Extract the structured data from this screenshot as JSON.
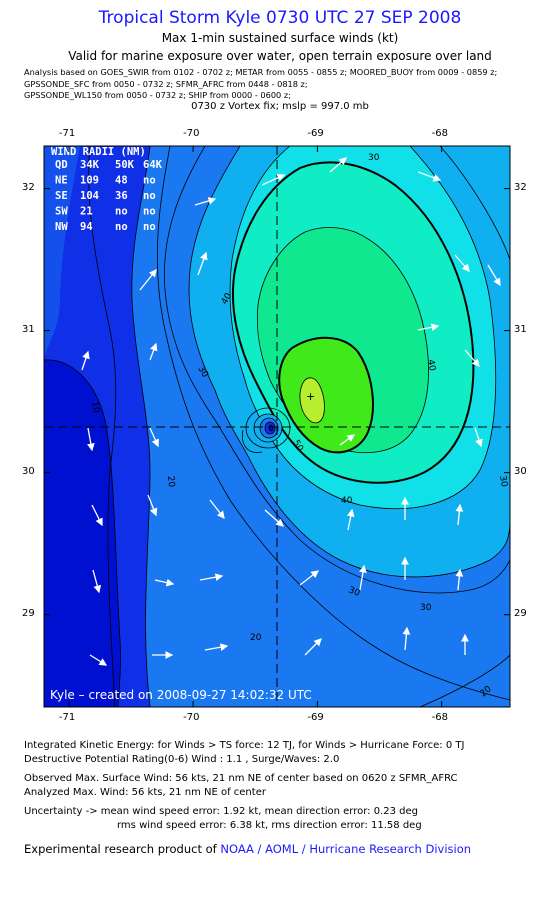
{
  "header": {
    "title": "Tropical Storm Kyle 0730 UTC 27 SEP 2008",
    "subtitle": "Max 1-min sustained surface winds (kt)",
    "valid": "Valid for marine exposure over water, open terrain exposure over land",
    "sources": [
      "Analysis based on  GOES_SWIR from 0102 - 0702 z;  METAR from 0055 - 0855 z;  MOORED_BUOY from 0009 - 0859 z;",
      "GPSSONDE_SFC from 0050 - 0732 z;  SFMR_AFRC from 0448 - 0818 z;",
      "GPSSONDE_WL150 from 0050 - 0732 z;  SHIP from 0000 - 0600 z;"
    ],
    "vortex": "0730 z Vortex fix; mslp = 997.0 mb"
  },
  "map": {
    "lon_ticks": [
      "-71",
      "-70",
      "-69",
      "-68"
    ],
    "lat_ticks": [
      "32",
      "31",
      "30",
      "29"
    ],
    "lon_values": [
      -71,
      -70,
      -69,
      -68
    ],
    "lat_values": [
      32,
      31,
      30,
      29
    ],
    "lon_range": [
      -71.2,
      -67.45
    ],
    "lat_range": [
      28.35,
      32.3
    ],
    "center": {
      "lon": -69.35,
      "lat": 30.22
    },
    "max_wind_marker": {
      "lon": -69.05,
      "lat": 30.45
    },
    "contour_labels": [
      "30",
      "10",
      "20",
      "30",
      "40",
      "40",
      "50",
      "40",
      "30",
      "20",
      "30",
      "20",
      "30"
    ],
    "wind_radii": {
      "title": "WIND RADII (NM)",
      "header": [
        "QD",
        "34K",
        "50K",
        "64K"
      ],
      "rows": [
        [
          "NE",
          "109",
          "48",
          "no"
        ],
        [
          "SE",
          "104",
          "36",
          "no"
        ],
        [
          "SW",
          "21",
          "no",
          "no"
        ],
        [
          "NW",
          "94",
          "no",
          "no"
        ]
      ]
    },
    "credit": "Kyle – created on 2008-09-27 14:02:32 UTC",
    "colors": {
      "band_0": "#0010d0",
      "band_10": "#1030e8",
      "band_20": "#1a78f0",
      "band_30": "#10b0f0",
      "band_40": "#12e0e8",
      "band_45": "#10ecc4",
      "band_50": "#10e890",
      "band_55": "#40ea1a",
      "band_60": "#b8ee30",
      "arrow": "#ffffff"
    }
  },
  "info": {
    "ike": "Integrated Kinetic Energy:  for Winds > TS force: 12 TJ,  for Winds > Hurricane Force: 0 TJ",
    "dpr": "Destructive Potential Rating(0-6)  Wind : 1.1 , Surge/Waves: 2.0",
    "obs_max": "Observed Max. Surface Wind: 56 kts, 21 nm NE of center based on 0620 z SFMR_AFRC",
    "analyzed_max": "Analyzed Max. Wind: 56 kts, 21 nm NE of center",
    "uncertainty_1": "Uncertainty -> mean wind speed error: 1.92 kt,   mean direction error: 0.23 deg",
    "uncertainty_2": "rms wind speed error: 6.38 kt,   rms direction error: 11.58 deg"
  },
  "footer": {
    "credit_prefix": "Experimental research product of ",
    "credit_link": "NOAA / AOML / Hurricane Research Division"
  }
}
